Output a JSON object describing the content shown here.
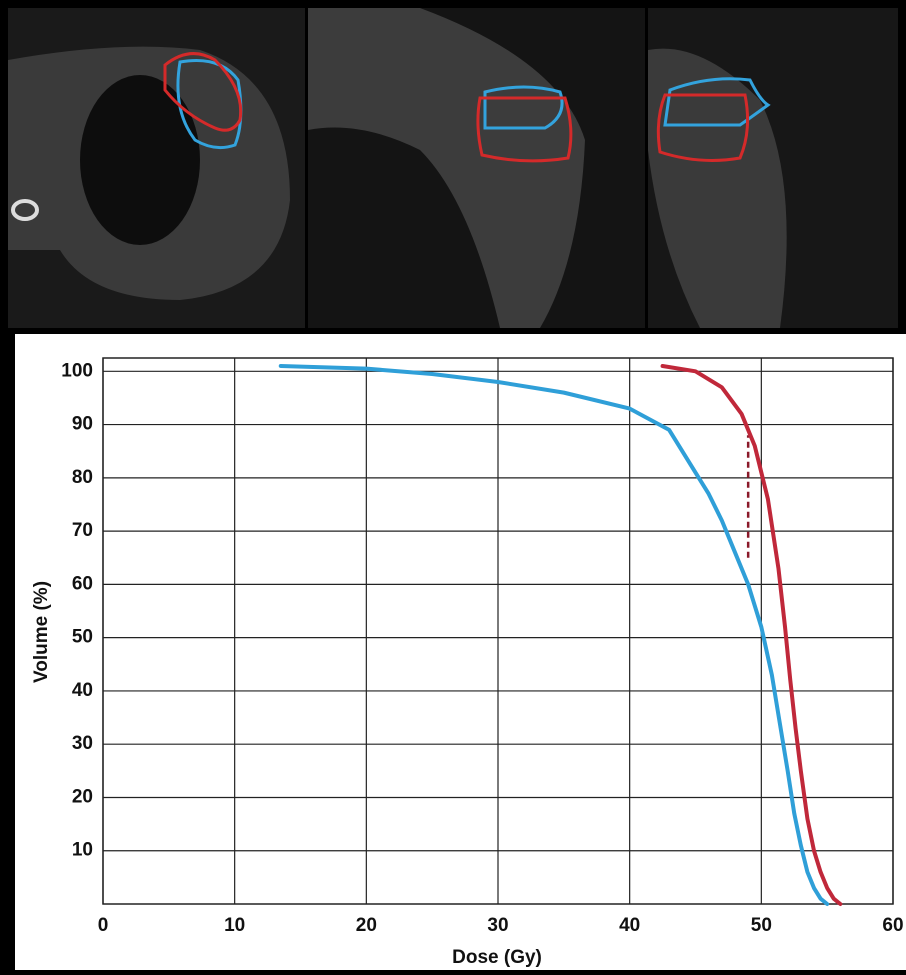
{
  "chart_data": {
    "type": "line",
    "x_label": "Dose (Gy)",
    "y_label": "Volume (%)",
    "xlim": [
      0,
      60
    ],
    "ylim": [
      0,
      102.5
    ],
    "xticks": [
      0,
      10,
      20,
      30,
      40,
      50,
      60
    ],
    "yticks": [
      10,
      20,
      30,
      40,
      50,
      60,
      70,
      80,
      90,
      100
    ],
    "grid": true,
    "series": [
      {
        "color": "#2f9fd8",
        "x": [
          13.5,
          20,
          25,
          30,
          35,
          40,
          43,
          45,
          46,
          47,
          48,
          49,
          50,
          50.8,
          51.4,
          52,
          52.5,
          53,
          53.5,
          54,
          54.5,
          55
        ],
        "values": [
          101,
          100.5,
          99.5,
          98,
          96,
          93,
          89,
          81,
          77,
          72,
          66,
          60,
          52,
          43,
          34,
          25,
          17,
          11,
          6,
          3,
          1,
          0
        ]
      },
      {
        "color": "#c0283a",
        "x": [
          42.5,
          45,
          47,
          48.5,
          49.5,
          50.5,
          51.3,
          51.8,
          52.2,
          52.6,
          53,
          53.5,
          54,
          54.5,
          55,
          55.5,
          56
        ],
        "values": [
          101,
          100,
          97,
          92,
          86,
          76,
          63,
          52,
          42,
          33,
          25,
          16,
          10,
          6,
          3,
          1,
          0
        ]
      }
    ],
    "dashed_line": {
      "x": 49,
      "y_from": 65,
      "y_to": 88,
      "color": "#8b1a2a"
    }
  }
}
